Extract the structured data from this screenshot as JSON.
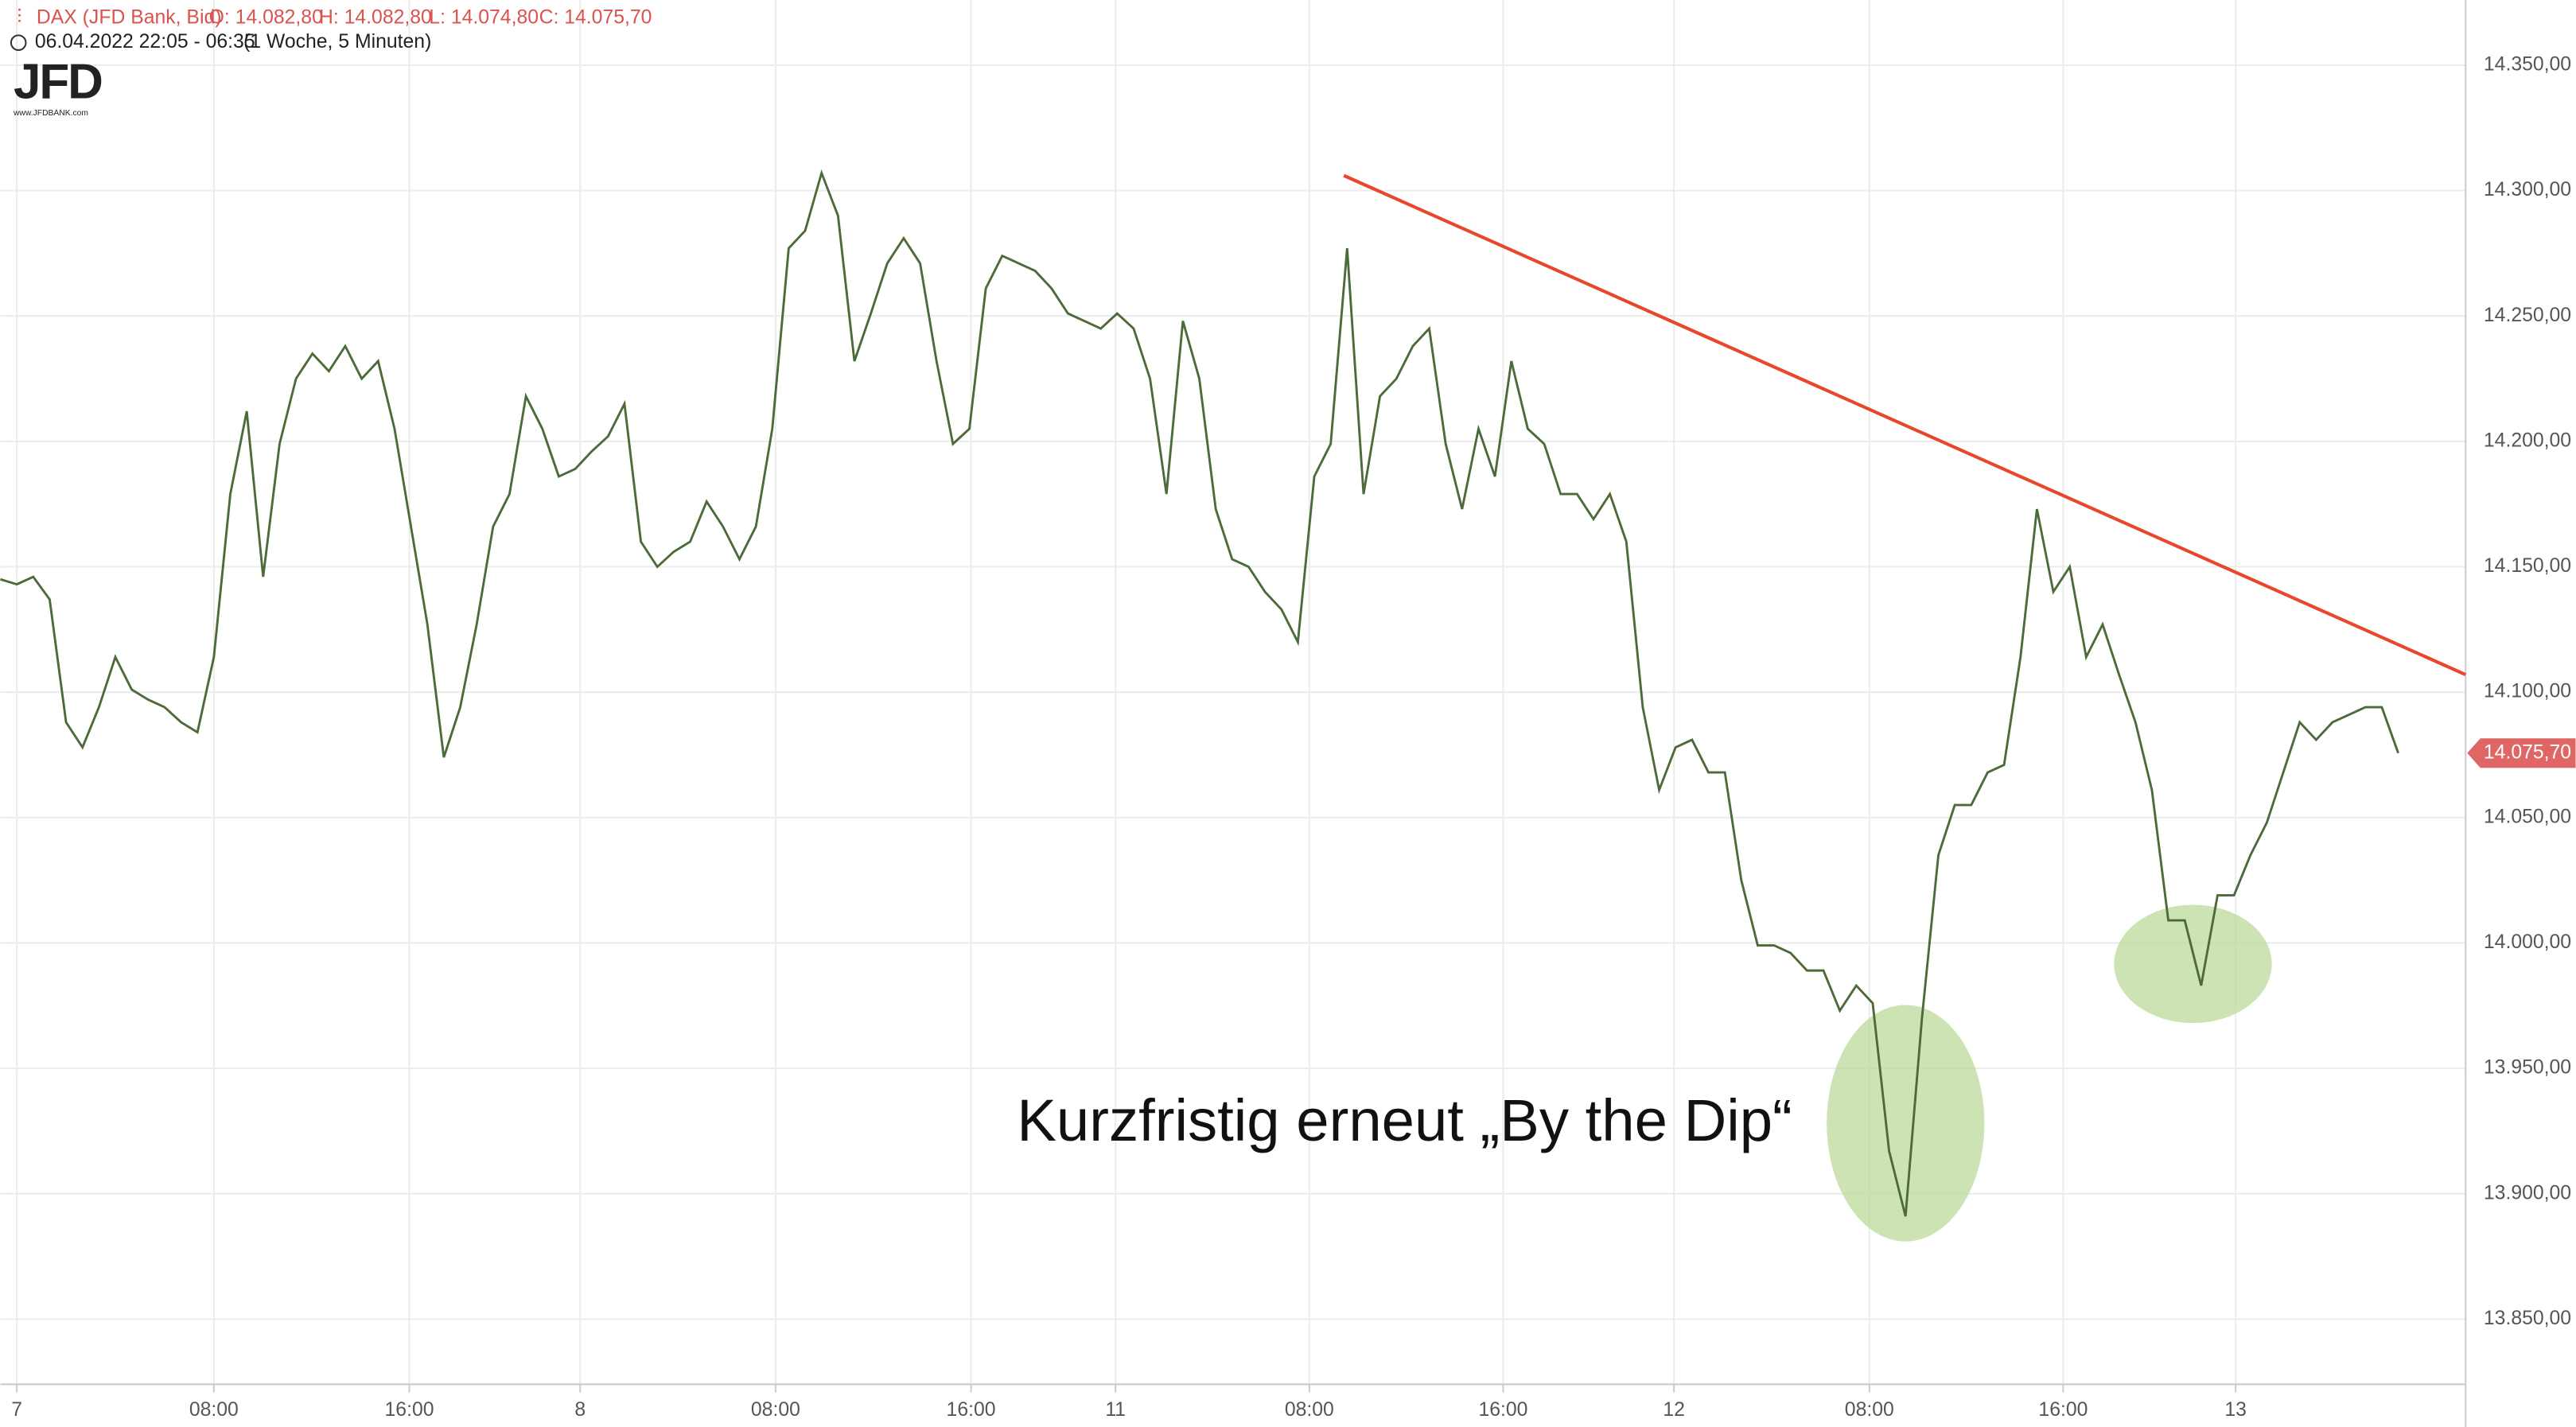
{
  "header": {
    "symbol": "DAX (JFD Bank, Bid)",
    "open": "O: 14.082,80",
    "high": "H: 14.082,80",
    "low": "L: 14.074,80",
    "close": "C: 14.075,70",
    "period": "06.04.2022 22:05 - 06:35",
    "interval": "(1 Woche, 5 Minuten)",
    "logo": "JFD",
    "logo_url": "www.JFDBANK.com"
  },
  "chart_data": {
    "type": "line",
    "annotation": "Kurzfristig erneut „By the Dip“",
    "series": [
      {
        "color": "#4d6b3a",
        "values": [
          14145,
          14143,
          14146,
          14137,
          14088,
          14078,
          14094,
          14114,
          14101,
          14097,
          14094,
          14088,
          14084,
          14114,
          14179,
          14212,
          14146,
          14199,
          14225,
          14235,
          14228,
          14238,
          14225,
          14232,
          14205,
          14166,
          14127,
          14074,
          14094,
          14127,
          14166,
          14179,
          14218,
          14205,
          14186,
          14189,
          14196,
          14202,
          14215,
          14160,
          14150,
          14156,
          14160,
          14176,
          14166,
          14153,
          14166,
          14205,
          14277,
          14284,
          14307,
          14290,
          14232,
          14251,
          14271,
          14281,
          14271,
          14232,
          14199,
          14205,
          14261,
          14274,
          14271,
          14268,
          14261,
          14251,
          14248,
          14245,
          14251,
          14245,
          14225,
          14179,
          14248,
          14225,
          14173,
          14153,
          14150,
          14140,
          14133,
          14120,
          14186,
          14199,
          14277,
          14179,
          14218,
          14225,
          14238,
          14245,
          14199,
          14173,
          14205,
          14186,
          14232,
          14205,
          14199,
          14179,
          14179,
          14169,
          14179,
          14160,
          14094,
          14061,
          14078,
          14081,
          14068,
          14068,
          14025,
          13999,
          13999,
          13996,
          13989,
          13989,
          13973,
          13983,
          13976,
          13917,
          13891,
          13970,
          14035,
          14055,
          14055,
          14068,
          14071,
          14114,
          14173,
          14140,
          14150,
          14114,
          14127,
          14107,
          14088,
          14061,
          14009,
          14009,
          13983,
          14019,
          14019,
          14035,
          14048,
          14068,
          14088,
          14081,
          14088,
          14091,
          14094,
          14094,
          14075.7
        ]
      }
    ],
    "last_label": "14.075,70",
    "last_color": "#e06666",
    "trendline": {
      "x": [
        81.8,
        150.1
      ],
      "values": [
        14306,
        14107
      ],
      "color": "#e8472c"
    },
    "xlim": [
      0,
      150.1
    ],
    "xticks": [
      {
        "value": 1,
        "label": "7"
      },
      {
        "value": 13,
        "label": "08:00"
      },
      {
        "value": 24.9,
        "label": "16:00"
      },
      {
        "value": 35.3,
        "label": "8"
      },
      {
        "value": 47.2,
        "label": "08:00"
      },
      {
        "value": 59.1,
        "label": "16:00"
      },
      {
        "value": 67.9,
        "label": "11"
      },
      {
        "value": 79.7,
        "label": "08:00"
      },
      {
        "value": 91.5,
        "label": "16:00"
      },
      {
        "value": 101.9,
        "label": "12"
      },
      {
        "value": 113.8,
        "label": "08:00"
      },
      {
        "value": 125.6,
        "label": "16:00"
      },
      {
        "value": 136.1,
        "label": "13"
      }
    ],
    "ylim": [
      13824,
      14376
    ],
    "yticks": [
      {
        "value": 13850,
        "label": "13.850,00"
      },
      {
        "value": 13900,
        "label": "13.900,00"
      },
      {
        "value": 13950,
        "label": "13.950,00"
      },
      {
        "value": 14000,
        "label": "14.000,00"
      },
      {
        "value": 14050,
        "label": "14.050,00"
      },
      {
        "value": 14100,
        "label": "14.100,00"
      },
      {
        "value": 14150,
        "label": "14.150,00"
      },
      {
        "value": 14200,
        "label": "14.200,00"
      },
      {
        "value": 14250,
        "label": "14.250,00"
      },
      {
        "value": 14300,
        "label": "14.300,00"
      },
      {
        "value": 14350,
        "label": "14.350,00"
      }
    ],
    "grid": true
  }
}
